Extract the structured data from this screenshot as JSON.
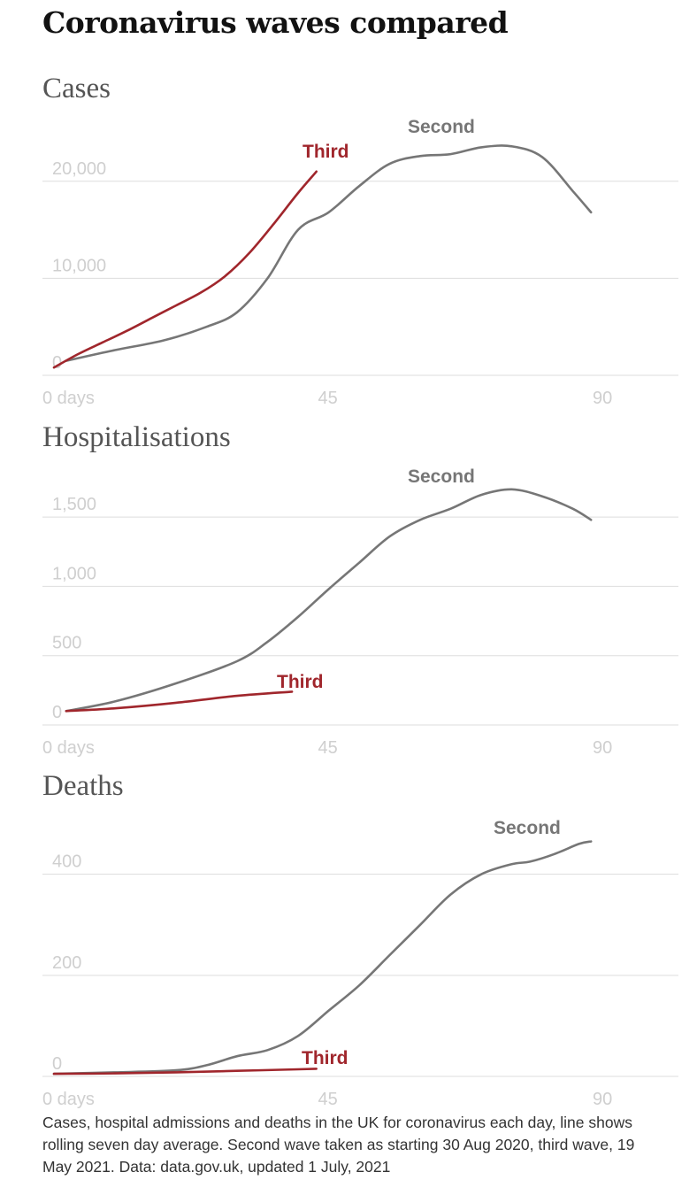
{
  "title": "Coronavirus waves compared",
  "footnote": "Cases, hospital admissions and deaths in the UK for coronavirus each day, line shows rolling seven day average. Second wave taken as starting 30 Aug 2020, third wave, 19 May 2021. Data: data.gov.uk, updated 1 July, 2021",
  "colors": {
    "second": "#767676",
    "third": "#a0262c",
    "grid": "#dddddd",
    "tick": "#cfcfcf"
  },
  "chart_data": [
    {
      "type": "line",
      "title": "Cases",
      "ylim": [
        0,
        25000
      ],
      "xlim": [
        0,
        100
      ],
      "y_ticks": [
        {
          "value": 0,
          "label": "0"
        },
        {
          "value": 10000,
          "label": "10,000"
        },
        {
          "value": 20000,
          "label": "20,000"
        }
      ],
      "x_ticks": [
        {
          "value": 0,
          "label": "0 days"
        },
        {
          "value": 45,
          "label": "45"
        },
        {
          "value": 90,
          "label": "90"
        }
      ],
      "grid": true,
      "series": [
        {
          "name": "Second",
          "color": "#767676",
          "x": [
            2,
            10,
            18,
            25,
            30,
            35,
            40,
            45,
            50,
            55,
            60,
            65,
            70,
            75,
            80,
            85,
            88
          ],
          "y": [
            1500,
            2600,
            3600,
            5000,
            6500,
            10000,
            15000,
            16800,
            19500,
            21800,
            22600,
            22800,
            23500,
            23600,
            22500,
            19000,
            16800
          ]
        },
        {
          "name": "Third",
          "color": "#a0262c",
          "x": [
            0,
            4,
            8,
            12,
            16,
            20,
            24,
            28,
            32,
            36,
            40,
            43
          ],
          "y": [
            800,
            2200,
            3400,
            4600,
            5900,
            7200,
            8500,
            10200,
            12600,
            15600,
            18800,
            21000
          ]
        }
      ]
    },
    {
      "type": "line",
      "title": "Hospitalisations",
      "ylim": [
        0,
        1750
      ],
      "xlim": [
        0,
        100
      ],
      "y_ticks": [
        {
          "value": 0,
          "label": "0"
        },
        {
          "value": 500,
          "label": "500"
        },
        {
          "value": 1000,
          "label": "1,000"
        },
        {
          "value": 1500,
          "label": "1,500"
        }
      ],
      "x_ticks": [
        {
          "value": 0,
          "label": "0 days"
        },
        {
          "value": 45,
          "label": "45"
        },
        {
          "value": 90,
          "label": "90"
        }
      ],
      "grid": true,
      "series": [
        {
          "name": "Second",
          "color": "#767676",
          "x": [
            2,
            10,
            20,
            30,
            35,
            40,
            45,
            50,
            55,
            60,
            65,
            70,
            75,
            80,
            85,
            88
          ],
          "y": [
            100,
            170,
            300,
            460,
            600,
            780,
            980,
            1170,
            1360,
            1480,
            1560,
            1660,
            1700,
            1650,
            1560,
            1480
          ]
        },
        {
          "name": "Third",
          "color": "#a0262c",
          "x": [
            2,
            10,
            20,
            30,
            39
          ],
          "y": [
            100,
            120,
            160,
            210,
            240
          ]
        }
      ]
    },
    {
      "type": "line",
      "title": "Deaths",
      "ylim": [
        0,
        480
      ],
      "xlim": [
        0,
        100
      ],
      "y_ticks": [
        {
          "value": 0,
          "label": "0"
        },
        {
          "value": 200,
          "label": "200"
        },
        {
          "value": 400,
          "label": "400"
        }
      ],
      "x_ticks": [
        {
          "value": 0,
          "label": "0 days"
        },
        {
          "value": 45,
          "label": "45"
        },
        {
          "value": 90,
          "label": "90"
        }
      ],
      "grid": true,
      "series": [
        {
          "name": "Second",
          "color": "#767676",
          "x": [
            0,
            10,
            20,
            25,
            30,
            35,
            40,
            45,
            50,
            55,
            60,
            65,
            70,
            75,
            78,
            82,
            86,
            88
          ],
          "y": [
            5,
            8,
            12,
            22,
            40,
            52,
            80,
            130,
            180,
            240,
            300,
            360,
            400,
            420,
            425,
            440,
            460,
            465
          ]
        },
        {
          "name": "Third",
          "color": "#a0262c",
          "x": [
            0,
            10,
            20,
            30,
            40,
            43
          ],
          "y": [
            5,
            6,
            8,
            11,
            14,
            15
          ]
        }
      ]
    }
  ]
}
